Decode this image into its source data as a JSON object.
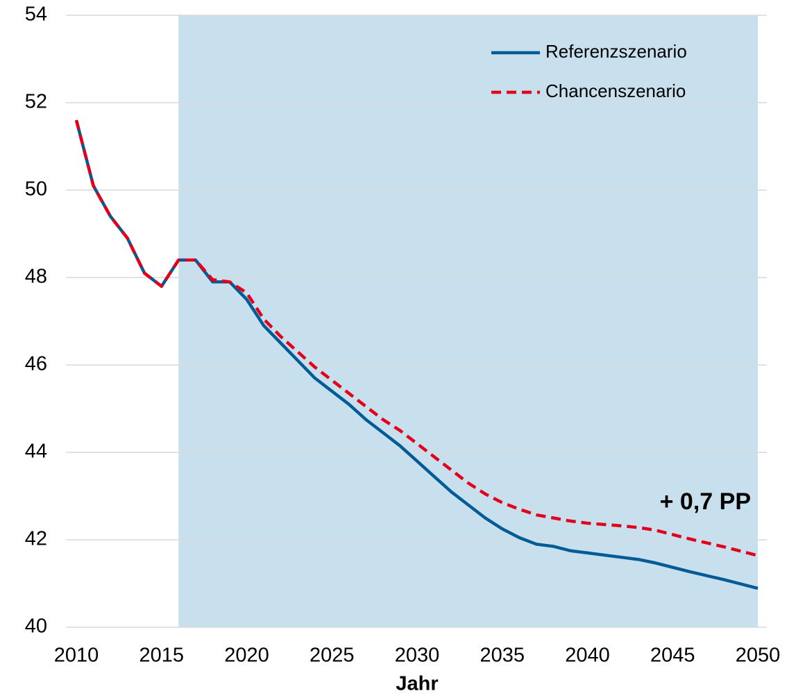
{
  "chart_data": {
    "type": "line",
    "xlabel": "Jahr",
    "x": [
      2010,
      2011,
      2012,
      2013,
      2014,
      2015,
      2016,
      2017,
      2018,
      2019,
      2020,
      2021,
      2022,
      2023,
      2024,
      2025,
      2026,
      2027,
      2028,
      2029,
      2030,
      2031,
      2032,
      2033,
      2034,
      2035,
      2036,
      2037,
      2038,
      2039,
      2040,
      2041,
      2042,
      2043,
      2044,
      2045,
      2046,
      2047,
      2048,
      2049,
      2050
    ],
    "series": [
      {
        "name": "Referenzszenario",
        "color": "#005b96",
        "dash": false,
        "values": [
          51.6,
          50.1,
          49.4,
          48.9,
          48.1,
          47.8,
          48.4,
          48.4,
          47.9,
          47.9,
          47.5,
          46.9,
          46.5,
          46.1,
          45.7,
          45.4,
          45.1,
          44.75,
          44.45,
          44.15,
          43.8,
          43.45,
          43.1,
          42.8,
          42.5,
          42.25,
          42.05,
          41.9,
          41.85,
          41.75,
          41.7,
          41.65,
          41.6,
          41.55,
          41.47,
          41.37,
          41.27,
          41.18,
          41.09,
          40.99,
          40.89
        ]
      },
      {
        "name": "Chancenszenario",
        "color": "#e2001a",
        "dash": true,
        "values": [
          51.6,
          50.1,
          49.4,
          48.9,
          48.1,
          47.8,
          48.4,
          48.4,
          47.95,
          47.9,
          47.65,
          47.05,
          46.65,
          46.3,
          45.95,
          45.65,
          45.35,
          45.05,
          44.75,
          44.5,
          44.2,
          43.9,
          43.6,
          43.3,
          43.05,
          42.85,
          42.7,
          42.57,
          42.5,
          42.43,
          42.38,
          42.35,
          42.32,
          42.28,
          42.22,
          42.12,
          42.02,
          41.93,
          41.84,
          41.74,
          41.64
        ]
      }
    ],
    "xlim": [
      2010,
      2050
    ],
    "ylim": [
      40,
      54
    ],
    "xticks": [
      2010,
      2015,
      2020,
      2025,
      2030,
      2035,
      2040,
      2045,
      2050
    ],
    "yticks": [
      40,
      42,
      44,
      46,
      48,
      50,
      52,
      54
    ],
    "grid": true,
    "shaded_range": [
      2016,
      2050
    ],
    "shaded_color": "#c8e0ee",
    "legend": "upper right",
    "annotation": {
      "text": "+ 0,7 PP",
      "color": "#e2001a"
    }
  }
}
